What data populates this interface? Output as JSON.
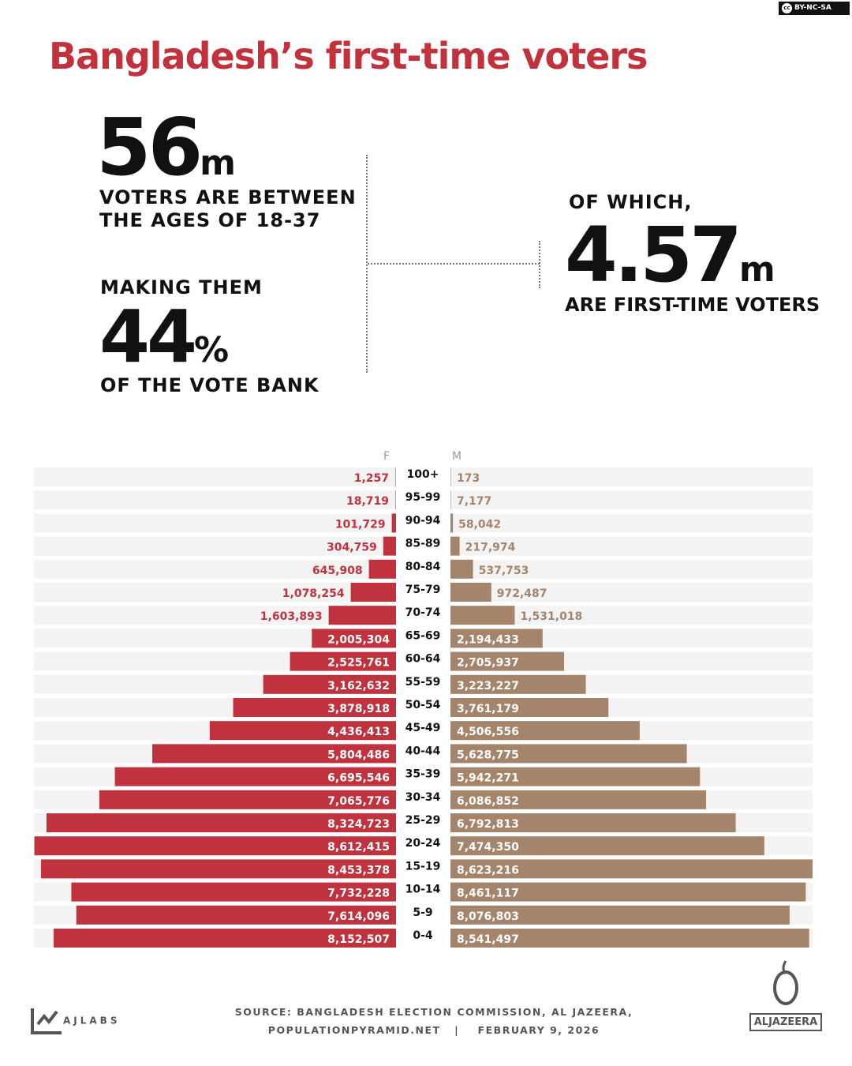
{
  "license": "BY-NC-SA",
  "title": "Bangladesh’s first-time voters",
  "stats": {
    "voters_value": "56",
    "voters_unit": "m",
    "voters_caption_1": "VOTERS ARE BETWEEN",
    "voters_caption_2": "THE AGES OF 18-37",
    "share_intro": "MAKING THEM",
    "share_value": "44",
    "share_unit": "%",
    "share_caption": "OF THE VOTE BANK",
    "first_intro": "OF WHICH,",
    "first_value": "4.57",
    "first_unit": "m",
    "first_caption": "ARE FIRST-TIME VOTERS"
  },
  "colors": {
    "female": "#c0323e",
    "male": "#a5846c",
    "title": "#c1323c",
    "row_bg": "#f3f3f3"
  },
  "chart_data": {
    "type": "bar",
    "subtype": "population-pyramid",
    "legend": [
      "F",
      "M"
    ],
    "categories": [
      "100+",
      "95-99",
      "90-94",
      "85-89",
      "80-84",
      "75-79",
      "70-74",
      "65-69",
      "60-64",
      "55-59",
      "50-54",
      "45-49",
      "40-44",
      "35-39",
      "30-34",
      "25-29",
      "20-24",
      "15-19",
      "10-14",
      "5-9",
      "0-4"
    ],
    "series": [
      {
        "name": "F",
        "values": [
          1257,
          18719,
          101729,
          304759,
          645908,
          1078254,
          1603893,
          2005304,
          2525761,
          3162632,
          3878918,
          4436413,
          5804486,
          6695546,
          7065776,
          8324723,
          8612415,
          8453378,
          7732228,
          7614096,
          8152507
        ]
      },
      {
        "name": "M",
        "values": [
          173,
          7177,
          58042,
          217974,
          537753,
          972487,
          1531018,
          2194433,
          2705937,
          3223227,
          3761179,
          4506556,
          5628775,
          5942271,
          6086852,
          6792813,
          7474350,
          8623216,
          8461117,
          8076803,
          8541497
        ]
      }
    ],
    "xlim": [
      0,
      8623216
    ]
  },
  "footer": {
    "brand_left": "AJLABS",
    "source_1": "SOURCE: BANGLADESH ELECTION COMMISSION, AL JAZEERA,",
    "source_2": "POPULATIONPYRAMID.NET   |    FEBRUARY 9, 2026",
    "brand_right": "ALJAZEERA"
  }
}
